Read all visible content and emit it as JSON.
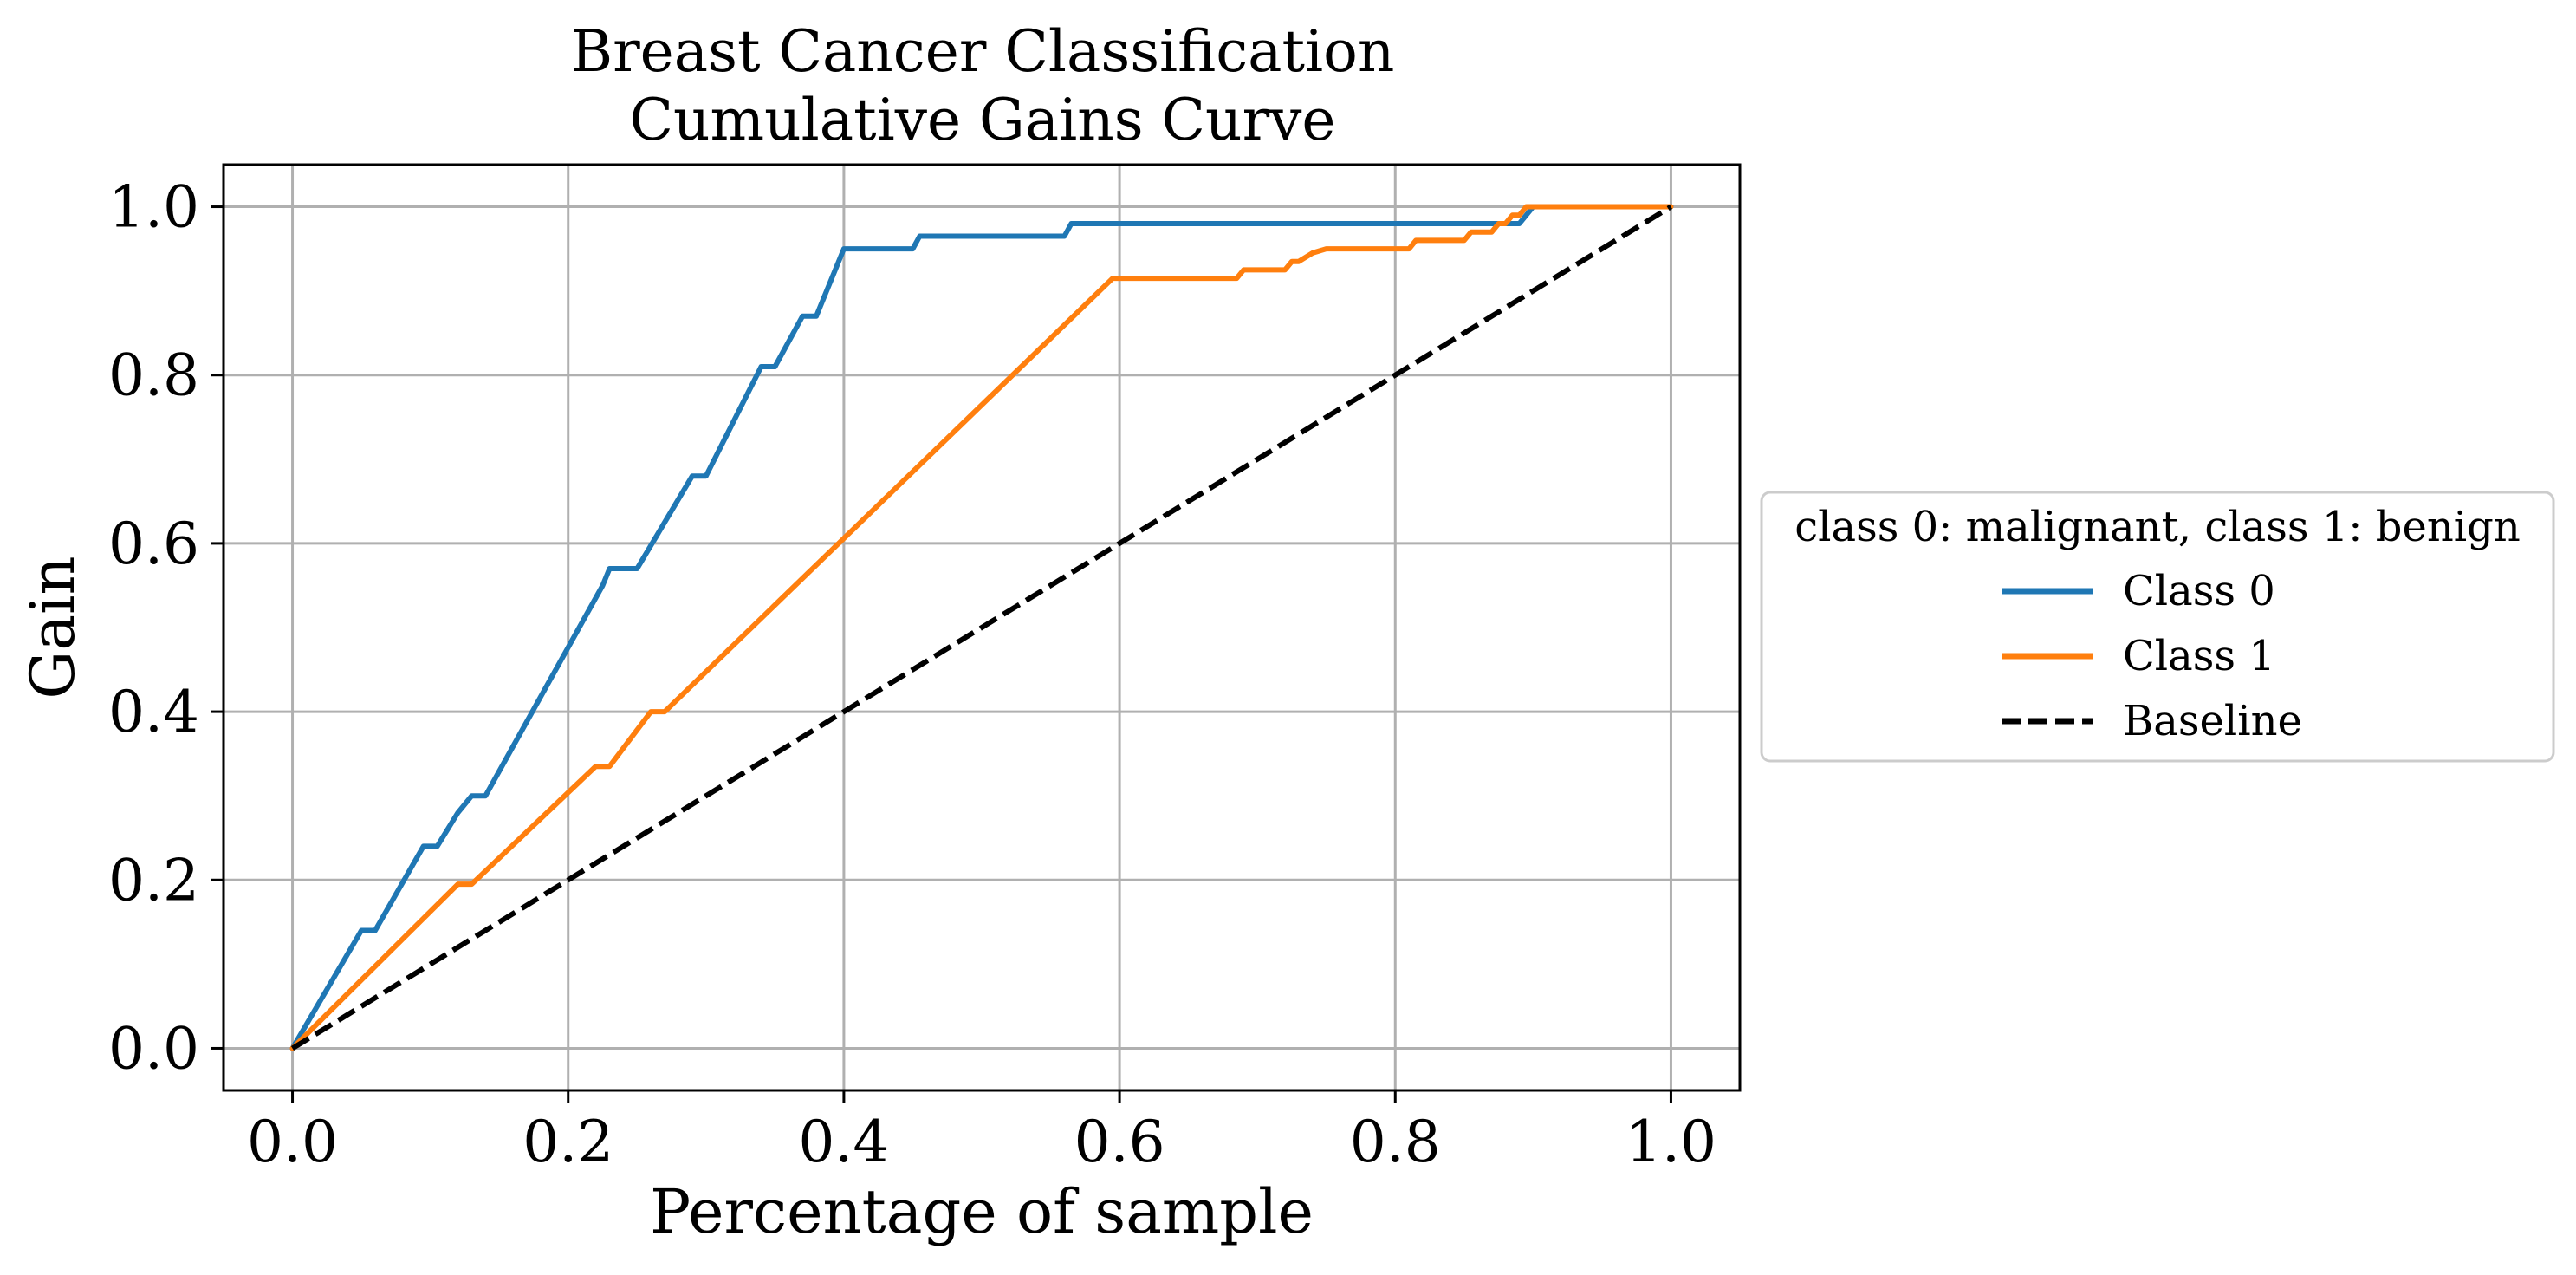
{
  "chart_data": {
    "type": "line",
    "title": [
      "Breast Cancer Classification",
      "Cumulative Gains Curve"
    ],
    "xlabel": "Percentage of sample",
    "ylabel": "Gain",
    "xlim": [
      -0.05,
      1.05
    ],
    "ylim": [
      -0.05,
      1.05
    ],
    "xticks": [
      0.0,
      0.2,
      0.4,
      0.6,
      0.8,
      1.0
    ],
    "yticks": [
      0.0,
      0.2,
      0.4,
      0.6,
      0.8,
      1.0
    ],
    "xtick_labels": [
      "0.0",
      "0.2",
      "0.4",
      "0.6",
      "0.8",
      "1.0"
    ],
    "ytick_labels": [
      "0.0",
      "0.2",
      "0.4",
      "0.6",
      "0.8",
      "1.0"
    ],
    "grid": true,
    "legend": {
      "title": "class 0: malignant, class 1: benign",
      "placement": "outside-right",
      "entries": [
        "Class 0",
        "Class 1",
        "Baseline"
      ]
    },
    "series": [
      {
        "name": "Class 0",
        "color": "#1f77b4",
        "style": "solid",
        "x": [
          0.0,
          0.05,
          0.06,
          0.095,
          0.105,
          0.12,
          0.13,
          0.14,
          0.225,
          0.23,
          0.24,
          0.25,
          0.29,
          0.3,
          0.34,
          0.35,
          0.37,
          0.38,
          0.4,
          0.45,
          0.455,
          0.56,
          0.565,
          0.89,
          0.9,
          1.0
        ],
        "y": [
          0.0,
          0.14,
          0.14,
          0.24,
          0.24,
          0.28,
          0.3,
          0.3,
          0.55,
          0.57,
          0.57,
          0.57,
          0.68,
          0.68,
          0.81,
          0.81,
          0.87,
          0.87,
          0.95,
          0.95,
          0.965,
          0.965,
          0.98,
          0.98,
          1.0,
          1.0
        ]
      },
      {
        "name": "Class 1",
        "color": "#ff7f0e",
        "style": "solid",
        "x": [
          0.0,
          0.12,
          0.13,
          0.22,
          0.23,
          0.26,
          0.27,
          0.595,
          0.685,
          0.69,
          0.72,
          0.725,
          0.73,
          0.74,
          0.75,
          0.81,
          0.815,
          0.85,
          0.855,
          0.87,
          0.875,
          0.88,
          0.885,
          0.89,
          0.895,
          1.0
        ],
        "y": [
          0.0,
          0.195,
          0.195,
          0.335,
          0.335,
          0.4,
          0.4,
          0.915,
          0.915,
          0.925,
          0.925,
          0.935,
          0.935,
          0.945,
          0.95,
          0.95,
          0.96,
          0.96,
          0.97,
          0.97,
          0.98,
          0.98,
          0.99,
          0.99,
          1.0,
          1.0
        ]
      },
      {
        "name": "Baseline",
        "color": "#000000",
        "style": "dashed",
        "x": [
          0.0,
          1.0
        ],
        "y": [
          0.0,
          1.0
        ]
      }
    ]
  }
}
